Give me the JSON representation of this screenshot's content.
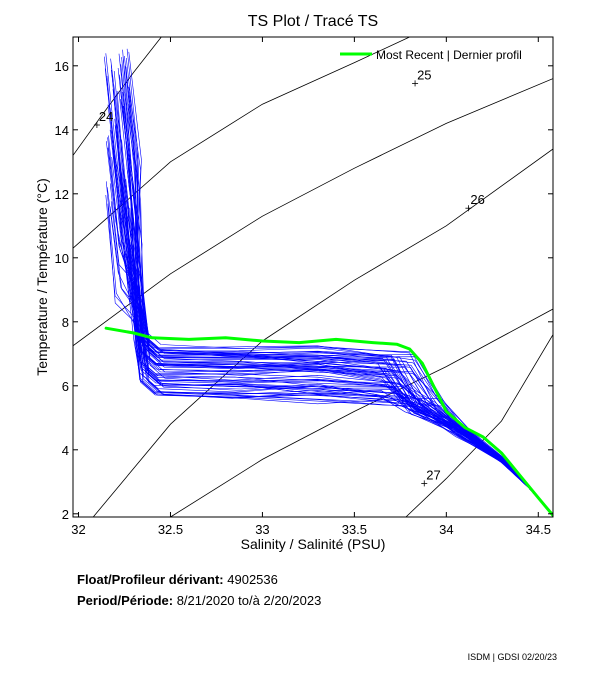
{
  "chart_data": {
    "type": "line",
    "title": "TS Plot / Tracé TS",
    "xlabel": "Salinity / Salinité (PSU)",
    "ylabel": "Temperature / Température (°C)",
    "xlim": [
      31.97,
      34.58
    ],
    "ylim": [
      1.9,
      16.9
    ],
    "x_ticks": [
      {
        "value": 32,
        "label": "32"
      },
      {
        "value": 32.5,
        "label": "32.5"
      },
      {
        "value": 33,
        "label": "33"
      },
      {
        "value": 33.5,
        "label": "33.5"
      },
      {
        "value": 34,
        "label": "34"
      },
      {
        "value": 34.5,
        "label": "34.5"
      }
    ],
    "y_ticks": [
      {
        "value": 2,
        "label": "2"
      },
      {
        "value": 4,
        "label": "4"
      },
      {
        "value": 6,
        "label": "6"
      },
      {
        "value": 8,
        "label": "8"
      },
      {
        "value": 10,
        "label": "10"
      },
      {
        "value": 12,
        "label": "12"
      },
      {
        "value": 14,
        "label": "14"
      },
      {
        "value": 16,
        "label": "16"
      }
    ],
    "grid": false,
    "legend": {
      "position": "top-right",
      "entries": [
        "Most Recent | Dernier profil"
      ]
    },
    "density_contours": [
      {
        "label": "24",
        "points": [
          [
            31.97,
            13.2
          ],
          [
            32.12,
            14.4
          ],
          [
            32.3,
            15.8
          ],
          [
            32.45,
            16.9
          ]
        ]
      },
      {
        "label": "25",
        "points": [
          [
            31.97,
            10.3
          ],
          [
            32.5,
            13.0
          ],
          [
            33.0,
            14.8
          ],
          [
            33.5,
            16.1
          ],
          [
            33.8,
            16.9
          ]
        ]
      },
      {
        "label": "",
        "points": [
          [
            31.97,
            7.25
          ],
          [
            32.5,
            9.5
          ],
          [
            33.0,
            11.3
          ],
          [
            33.5,
            12.8
          ],
          [
            34.0,
            14.2
          ],
          [
            34.58,
            15.6
          ]
        ]
      },
      {
        "label": "26",
        "points": [
          [
            32.08,
            1.9
          ],
          [
            32.5,
            4.8
          ],
          [
            33.0,
            7.4
          ],
          [
            33.5,
            9.3
          ],
          [
            34.0,
            11.0
          ],
          [
            34.58,
            13.4
          ]
        ]
      },
      {
        "label": "",
        "points": [
          [
            32.5,
            1.9
          ],
          [
            33.0,
            3.7
          ],
          [
            33.5,
            5.2
          ],
          [
            34.0,
            6.6
          ],
          [
            34.58,
            8.4
          ]
        ]
      },
      {
        "label": "27",
        "points": [
          [
            33.78,
            1.9
          ],
          [
            34.0,
            3.1
          ],
          [
            34.3,
            4.9
          ],
          [
            34.58,
            7.6
          ]
        ]
      }
    ],
    "contour_label_positions": [
      {
        "label": "24",
        "x": 32.1,
        "y": 14.15
      },
      {
        "label": "25",
        "x": 33.83,
        "y": 15.45
      },
      {
        "label": "26",
        "x": 34.12,
        "y": 11.55
      },
      {
        "label": "27",
        "x": 33.88,
        "y": 2.95
      }
    ],
    "series": [
      {
        "name": "Most Recent | Dernier profil",
        "values": [
          [
            32.15,
            7.8
          ],
          [
            32.3,
            7.65
          ],
          [
            32.4,
            7.5
          ],
          [
            32.6,
            7.45
          ],
          [
            32.8,
            7.5
          ],
          [
            33.0,
            7.4
          ],
          [
            33.2,
            7.35
          ],
          [
            33.4,
            7.45
          ],
          [
            33.6,
            7.35
          ],
          [
            33.73,
            7.3
          ],
          [
            33.8,
            7.15
          ],
          [
            33.87,
            6.7
          ],
          [
            33.93,
            6.0
          ],
          [
            34.0,
            5.2
          ],
          [
            34.1,
            4.7
          ],
          [
            34.2,
            4.4
          ],
          [
            34.3,
            3.9
          ],
          [
            34.4,
            3.2
          ],
          [
            34.5,
            2.5
          ],
          [
            34.58,
            1.95
          ]
        ]
      }
    ]
  },
  "float_label": "Float/Profileur dérivant:",
  "float_id": "4902536",
  "period_label": "Period/Période:",
  "period_start": "8/21/2020",
  "period_sep": "to/à",
  "period_end": "2/20/2023",
  "credit": "ISDM | GDSI  02/20/23",
  "colors": {
    "profiles": "#0000ff",
    "latest": "#00ff00",
    "contours": "#000000",
    "axes": "#000000"
  }
}
